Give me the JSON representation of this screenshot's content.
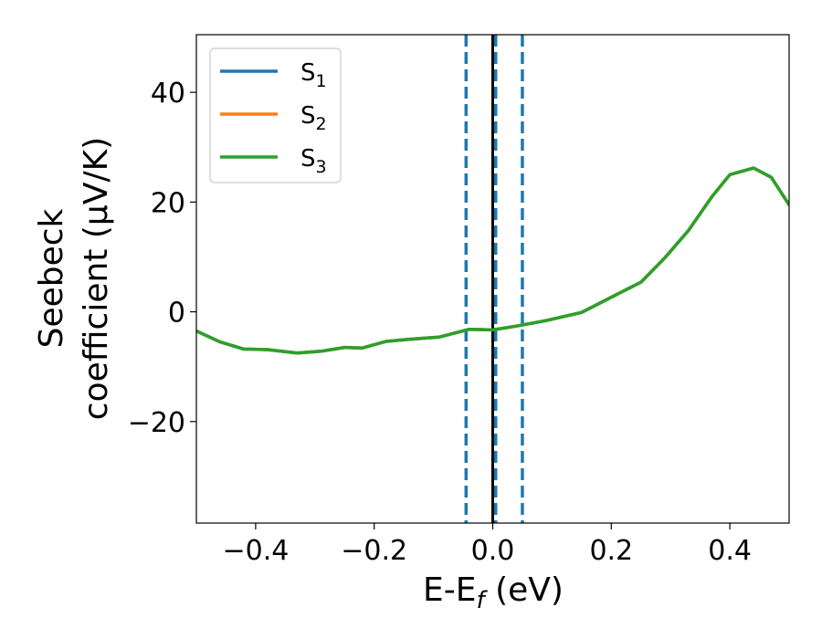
{
  "chart_data": {
    "type": "line",
    "xlabel": {
      "main": "E-E",
      "sub": "f",
      "unit": " (eV)"
    },
    "ylabel": {
      "line1": "Seebeck",
      "line2": "coefficient  (μV/K)"
    },
    "xlim": [
      -0.5,
      0.5
    ],
    "ylim": [
      -38.5,
      50.5
    ],
    "xticks": [
      -0.4,
      -0.2,
      0.0,
      0.2,
      0.4
    ],
    "xtick_labels": [
      "−0.4",
      "−0.2",
      "0.0",
      "0.2",
      "0.4"
    ],
    "yticks": [
      -20,
      0,
      20,
      40
    ],
    "ytick_labels": [
      "−20",
      "0",
      "20",
      "40"
    ],
    "grid": false,
    "legend_position": "top-left",
    "colors": {
      "s1": "#1f77b4",
      "s2": "#ff7f0e",
      "s3": "#2ca02c"
    },
    "series": [
      {
        "name": "S1",
        "base": "S",
        "sub": "1",
        "color": "#1f77b4",
        "x": [
          -0.5,
          -0.46,
          -0.42,
          -0.38,
          -0.33,
          -0.29,
          -0.25,
          -0.22,
          -0.18,
          -0.14,
          -0.09,
          -0.04,
          0.0,
          0.04,
          0.09,
          0.15,
          0.21,
          0.25,
          0.29,
          0.33,
          0.37,
          0.4,
          0.44,
          0.47,
          0.5
        ],
        "y": [
          -3.5,
          -5.5,
          -6.8,
          -6.9,
          -7.5,
          -7.2,
          -6.5,
          -6.6,
          -5.4,
          -5.0,
          -4.6,
          -3.2,
          -3.3,
          -2.6,
          -1.6,
          -0.1,
          3.2,
          5.4,
          9.8,
          14.8,
          21.0,
          25.0,
          26.2,
          24.5,
          19.5
        ]
      },
      {
        "name": "S2",
        "base": "S",
        "sub": "2",
        "color": "#ff7f0e",
        "x": [
          -0.5,
          -0.46,
          -0.42,
          -0.38,
          -0.33,
          -0.29,
          -0.25,
          -0.22,
          -0.18,
          -0.14,
          -0.09,
          -0.04,
          0.0,
          0.04,
          0.09,
          0.15,
          0.21,
          0.25,
          0.29,
          0.33,
          0.37,
          0.4,
          0.44,
          0.47,
          0.5
        ],
        "y": [
          -3.5,
          -5.5,
          -6.8,
          -6.9,
          -7.5,
          -7.2,
          -6.5,
          -6.6,
          -5.4,
          -5.0,
          -4.6,
          -3.2,
          -3.3,
          -2.6,
          -1.6,
          -0.1,
          3.2,
          5.4,
          9.8,
          14.8,
          21.0,
          25.0,
          26.2,
          24.5,
          19.5
        ]
      },
      {
        "name": "S3",
        "base": "S",
        "sub": "3",
        "color": "#2ca02c",
        "x": [
          -0.5,
          -0.46,
          -0.42,
          -0.38,
          -0.33,
          -0.29,
          -0.25,
          -0.22,
          -0.18,
          -0.14,
          -0.09,
          -0.04,
          0.0,
          0.04,
          0.09,
          0.15,
          0.21,
          0.25,
          0.29,
          0.33,
          0.37,
          0.4,
          0.44,
          0.47,
          0.5
        ],
        "y": [
          -3.5,
          -5.5,
          -6.8,
          -6.9,
          -7.5,
          -7.2,
          -6.5,
          -6.6,
          -5.4,
          -5.0,
          -4.6,
          -3.2,
          -3.3,
          -2.6,
          -1.6,
          -0.1,
          3.2,
          5.4,
          9.8,
          14.8,
          21.0,
          25.0,
          26.2,
          24.5,
          19.5
        ]
      }
    ],
    "vlines": [
      {
        "x": -0.045,
        "style": "dashed",
        "color": "#1f77b4"
      },
      {
        "x": 0.0,
        "style": "solid",
        "color": "#000000"
      },
      {
        "x": 0.005,
        "style": "dashed",
        "color": "#1f77b4"
      },
      {
        "x": 0.05,
        "style": "dashed",
        "color": "#1f77b4"
      }
    ]
  }
}
